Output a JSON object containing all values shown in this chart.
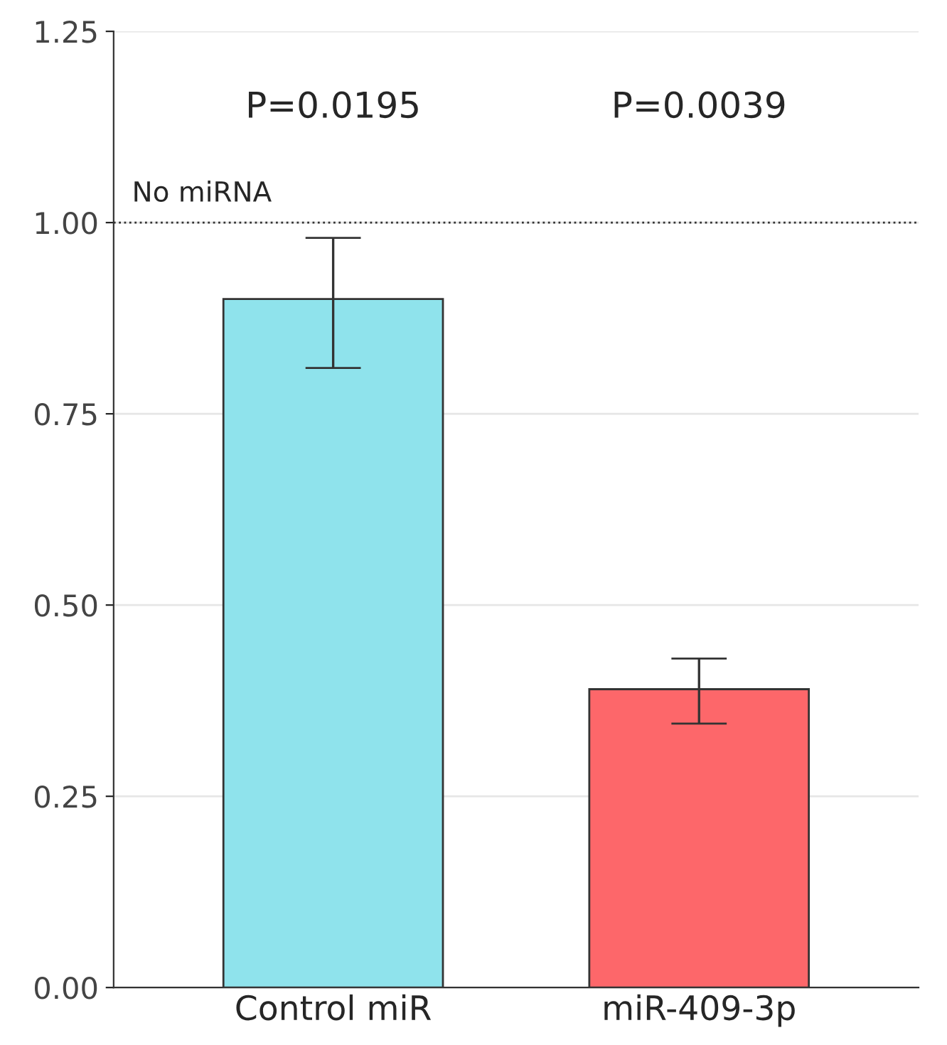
{
  "chart_data": {
    "type": "bar",
    "categories": [
      "Control miR",
      "miR-409-3p"
    ],
    "values": [
      0.9,
      0.39
    ],
    "colors": [
      "#8fe3ec",
      "#fd676a"
    ],
    "errors": [
      [
        0.81,
        0.98
      ],
      [
        0.345,
        0.43
      ]
    ],
    "ylim": [
      0,
      1.25
    ],
    "yticks": [
      {
        "value": 0,
        "label": "0.00"
      },
      {
        "value": 0.25,
        "label": "0.25"
      },
      {
        "value": 0.5,
        "label": "0.50"
      },
      {
        "value": 0.75,
        "label": "0.75"
      },
      {
        "value": 1.0,
        "label": "1.00"
      },
      {
        "value": 1.25,
        "label": "1.25"
      }
    ],
    "grid": "y",
    "ref_lines": [
      {
        "axis": "y",
        "value": 1.0,
        "label": "No miRNA",
        "color": "#333333",
        "line_style": "dotted"
      }
    ],
    "annotations": [
      "P=0.0195",
      "P=0.0039"
    ]
  }
}
